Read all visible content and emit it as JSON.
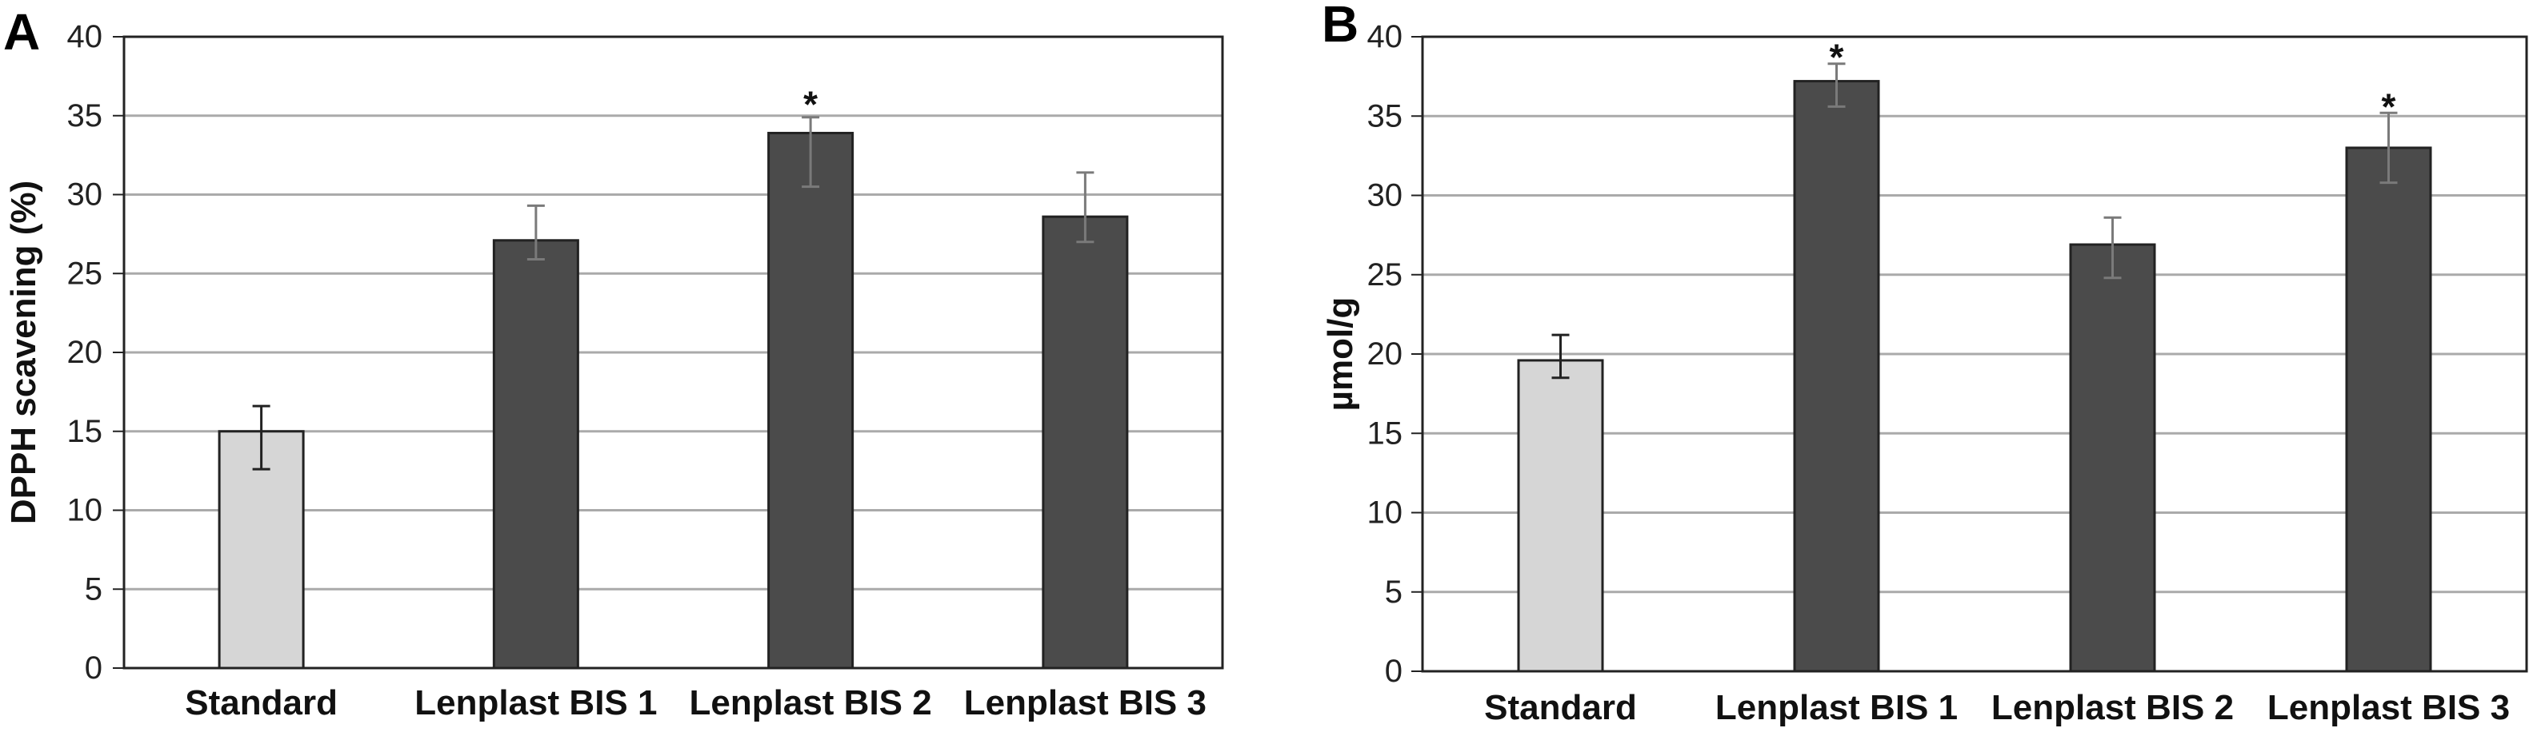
{
  "colors": {
    "standard_bar": "#d6d6d6",
    "lenplast_bar": "#4b4b4b",
    "bar_stroke": "#222222",
    "grid": "#aaaaaa",
    "error_bar_light": "#7a7a7a",
    "error_bar_dark": "#222222"
  },
  "chart_data": [
    {
      "type": "bar",
      "panel": "A",
      "title": "",
      "xlabel": "",
      "ylabel": "DPPH scavening (%)",
      "ylim": [
        0,
        40
      ],
      "yticks": [
        "0",
        "5",
        "10",
        "15",
        "20",
        "25",
        "30",
        "35",
        "40"
      ],
      "grid": true,
      "categories": [
        "Standard",
        "Lenplast BIS 1",
        "Lenplast BIS 2",
        "Lenplast BIS 3"
      ],
      "values": [
        15.0,
        27.1,
        33.9,
        28.6
      ],
      "err_low": [
        12.6,
        25.9,
        30.5,
        27.0
      ],
      "err_high": [
        16.6,
        29.3,
        34.9,
        31.4
      ],
      "significance": [
        "",
        "",
        "*",
        ""
      ]
    },
    {
      "type": "bar",
      "panel": "B",
      "title": "",
      "xlabel": "",
      "ylabel": "µmol/g",
      "ylim": [
        0,
        40
      ],
      "yticks": [
        "0",
        "5",
        "10",
        "15",
        "20",
        "25",
        "30",
        "35",
        "40"
      ],
      "grid": true,
      "categories": [
        "Standard",
        "Lenplast BIS 1",
        "Lenplast BIS 2",
        "Lenplast BIS 3"
      ],
      "values": [
        19.6,
        37.2,
        26.9,
        33.0
      ],
      "err_low": [
        18.5,
        35.6,
        24.8,
        30.8
      ],
      "err_high": [
        21.2,
        38.3,
        28.6,
        35.2
      ],
      "significance": [
        "",
        "*",
        "",
        "*"
      ]
    }
  ]
}
